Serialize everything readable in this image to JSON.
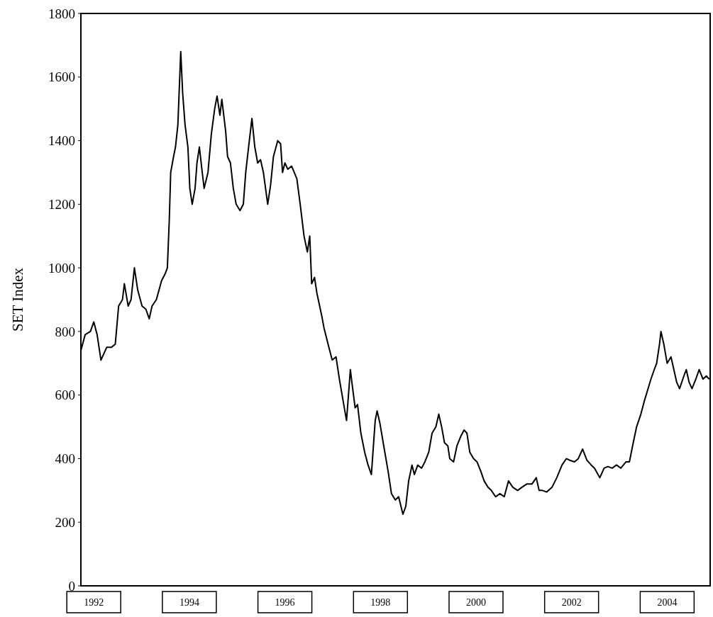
{
  "chart_data": {
    "type": "line",
    "ylabel": "SET Index",
    "xlim": [
      1991.73,
      2004.9
    ],
    "xticks": [
      1992,
      1994,
      1996,
      1998,
      2000,
      2002,
      2004
    ],
    "ylim": [
      0,
      1800
    ],
    "yticks": [
      0,
      200,
      400,
      600,
      800,
      1000,
      1200,
      1400,
      1600,
      1800
    ],
    "series": [
      {
        "color": "#000000",
        "x": [
          1991.73,
          1991.82,
          1991.93,
          1992.0,
          1992.07,
          1992.15,
          1992.27,
          1992.37,
          1992.45,
          1992.52,
          1992.6,
          1992.64,
          1992.72,
          1992.78,
          1992.85,
          1992.92,
          1993.01,
          1993.09,
          1993.16,
          1993.22,
          1993.31,
          1993.42,
          1993.49,
          1993.54,
          1993.58,
          1993.61,
          1993.67,
          1993.71,
          1993.76,
          1993.82,
          1993.86,
          1993.91,
          1993.97,
          1994.01,
          1994.06,
          1994.12,
          1994.16,
          1994.21,
          1994.27,
          1994.31,
          1994.39,
          1994.46,
          1994.53,
          1994.58,
          1994.64,
          1994.68,
          1994.76,
          1994.8,
          1994.86,
          1994.92,
          1994.98,
          1995.06,
          1995.13,
          1995.18,
          1995.24,
          1995.31,
          1995.37,
          1995.43,
          1995.49,
          1995.55,
          1995.64,
          1995.7,
          1995.76,
          1995.85,
          1995.91,
          1995.95,
          1996.0,
          1996.06,
          1996.14,
          1996.25,
          1996.32,
          1996.4,
          1996.47,
          1996.52,
          1996.56,
          1996.62,
          1996.67,
          1996.77,
          1996.82,
          1996.92,
          1996.99,
          1997.07,
          1997.14,
          1997.22,
          1997.29,
          1997.37,
          1997.41,
          1997.47,
          1997.52,
          1997.59,
          1997.67,
          1997.74,
          1997.81,
          1997.89,
          1997.93,
          1997.99,
          1998.08,
          1998.16,
          1998.23,
          1998.31,
          1998.38,
          1998.47,
          1998.53,
          1998.59,
          1998.66,
          1998.71,
          1998.78,
          1998.86,
          1998.93,
          1999.01,
          1999.08,
          1999.16,
          1999.22,
          1999.28,
          1999.34,
          1999.41,
          1999.45,
          1999.53,
          1999.6,
          1999.68,
          1999.75,
          1999.81,
          1999.87,
          1999.95,
          2000.02,
          2000.1,
          2000.17,
          2000.25,
          2000.32,
          2000.41,
          2000.5,
          2000.59,
          2000.68,
          2000.77,
          2000.87,
          2000.96,
          2001.06,
          2001.17,
          2001.26,
          2001.32,
          2001.39,
          2001.48,
          2001.59,
          2001.69,
          2001.8,
          2001.89,
          2001.96,
          2002.06,
          2002.14,
          2002.23,
          2002.32,
          2002.41,
          2002.48,
          2002.59,
          2002.68,
          2002.76,
          2002.85,
          2002.94,
          2003.03,
          2003.14,
          2003.21,
          2003.29,
          2003.36,
          2003.45,
          2003.52,
          2003.6,
          2003.66,
          2003.73,
          2003.78,
          2003.84,
          2003.87,
          2003.93,
          2004.0,
          2004.08,
          2004.14,
          2004.2,
          2004.26,
          2004.35,
          2004.4,
          2004.46,
          2004.52,
          2004.6,
          2004.67,
          2004.75,
          2004.82,
          2004.88
        ],
        "values": [
          740,
          790,
          800,
          830,
          790,
          710,
          750,
          750,
          760,
          880,
          900,
          950,
          880,
          900,
          1000,
          930,
          880,
          870,
          840,
          880,
          900,
          960,
          980,
          1000,
          1150,
          1300,
          1350,
          1380,
          1450,
          1680,
          1550,
          1450,
          1380,
          1250,
          1200,
          1250,
          1330,
          1380,
          1300,
          1250,
          1300,
          1420,
          1500,
          1540,
          1480,
          1530,
          1430,
          1350,
          1330,
          1250,
          1200,
          1180,
          1200,
          1300,
          1380,
          1470,
          1380,
          1330,
          1340,
          1300,
          1200,
          1260,
          1350,
          1400,
          1390,
          1300,
          1330,
          1310,
          1320,
          1280,
          1200,
          1100,
          1050,
          1100,
          950,
          970,
          920,
          850,
          810,
          750,
          710,
          720,
          650,
          580,
          520,
          680,
          630,
          560,
          570,
          480,
          420,
          380,
          350,
          520,
          550,
          510,
          430,
          360,
          290,
          270,
          280,
          225,
          250,
          330,
          380,
          350,
          380,
          370,
          390,
          420,
          480,
          500,
          540,
          500,
          450,
          440,
          400,
          390,
          440,
          470,
          490,
          480,
          420,
          400,
          390,
          360,
          330,
          310,
          300,
          280,
          290,
          280,
          330,
          310,
          300,
          310,
          320,
          320,
          340,
          300,
          300,
          295,
          310,
          340,
          380,
          400,
          395,
          390,
          400,
          430,
          395,
          380,
          370,
          340,
          370,
          375,
          370,
          380,
          370,
          390,
          390,
          450,
          500,
          540,
          580,
          620,
          650,
          680,
          700,
          760,
          800,
          760,
          700,
          720,
          680,
          640,
          620,
          660,
          680,
          640,
          620,
          650,
          680,
          650,
          660,
          650
        ]
      }
    ]
  }
}
